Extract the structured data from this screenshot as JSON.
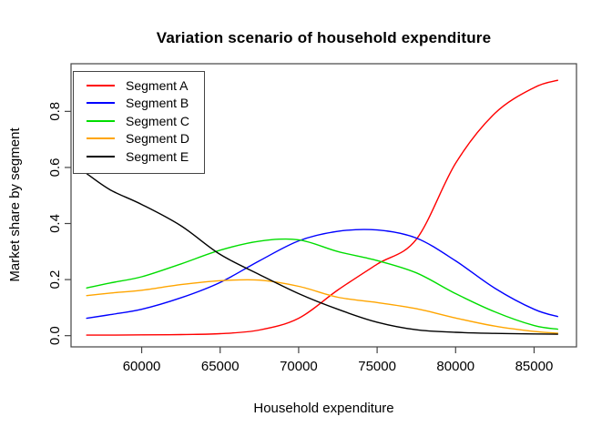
{
  "chart_data": {
    "type": "line",
    "title": "Variation scenario of household expenditure",
    "xlabel": "Household expenditure",
    "ylabel": "Market share by segment",
    "x_ticks": [
      60000,
      65000,
      70000,
      75000,
      80000,
      85000
    ],
    "x_tick_labels": [
      "60000",
      "65000",
      "70000",
      "75000",
      "80000",
      "85000"
    ],
    "y_ticks": [
      0.0,
      0.2,
      0.4,
      0.6,
      0.8
    ],
    "y_tick_labels": [
      "0.0",
      "0.2",
      "0.4",
      "0.6",
      "0.8"
    ],
    "xlim": [
      55500,
      87700
    ],
    "ylim": [
      -0.04,
      0.97
    ],
    "grid": false,
    "legend_position": "top-left",
    "x": [
      56500,
      58000,
      60000,
      62500,
      65000,
      67500,
      70000,
      72500,
      75000,
      77500,
      80000,
      82500,
      85000,
      86500
    ],
    "series": [
      {
        "name": "Segment A",
        "color": "#ff0000",
        "values": [
          0.002,
          0.002,
          0.003,
          0.004,
          0.007,
          0.02,
          0.062,
          0.163,
          0.255,
          0.344,
          0.615,
          0.793,
          0.885,
          0.911
        ]
      },
      {
        "name": "Segment B",
        "color": "#0000ff",
        "values": [
          0.062,
          0.075,
          0.094,
          0.135,
          0.19,
          0.267,
          0.338,
          0.372,
          0.377,
          0.348,
          0.267,
          0.169,
          0.094,
          0.068
        ]
      },
      {
        "name": "Segment C",
        "color": "#00dd00",
        "values": [
          0.17,
          0.188,
          0.21,
          0.256,
          0.305,
          0.337,
          0.342,
          0.3,
          0.268,
          0.224,
          0.15,
          0.085,
          0.036,
          0.023
        ]
      },
      {
        "name": "Segment D",
        "color": "#ffa500",
        "values": [
          0.143,
          0.152,
          0.162,
          0.182,
          0.196,
          0.198,
          0.176,
          0.137,
          0.118,
          0.096,
          0.063,
          0.034,
          0.015,
          0.009
        ]
      },
      {
        "name": "Segment E",
        "color": "#000000",
        "values": [
          0.578,
          0.52,
          0.468,
          0.392,
          0.29,
          0.218,
          0.15,
          0.094,
          0.048,
          0.021,
          0.012,
          0.008,
          0.006,
          0.005
        ]
      }
    ],
    "axis_color": "#444444",
    "text_color": "#000000"
  }
}
